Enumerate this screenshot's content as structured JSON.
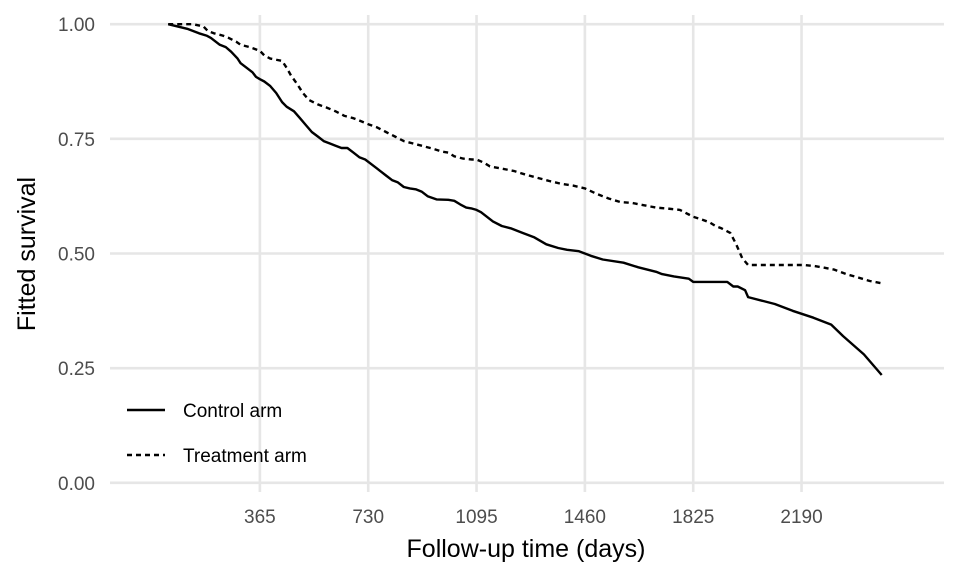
{
  "chart_data": {
    "type": "line",
    "title": "",
    "xlabel": "Follow-up time (days)",
    "ylabel": "Fitted survival",
    "xlim": [
      -140,
      2670
    ],
    "ylim": [
      -0.02,
      1.02
    ],
    "x_ticks": [
      365,
      730,
      1095,
      1460,
      1825,
      2190
    ],
    "x_tick_labels": [
      "365",
      "730",
      "1095",
      "1460",
      "1825",
      "2190"
    ],
    "y_ticks": [
      0.0,
      0.25,
      0.5,
      0.75,
      1.0
    ],
    "y_tick_labels": [
      "0.00",
      "0.25",
      "0.50",
      "0.75",
      "1.00"
    ],
    "grid": true,
    "legend_position": "bottom-left",
    "series": [
      {
        "name": "Control arm",
        "line_style": "solid",
        "color": "#000000",
        "x": [
          56,
          120,
          160,
          185,
          200,
          230,
          250,
          268,
          290,
          300,
          320,
          340,
          352,
          365,
          380,
          400,
          420,
          440,
          455,
          480,
          500,
          520,
          540,
          560,
          580,
          600,
          620,
          640,
          660,
          680,
          700,
          720,
          740,
          760,
          770,
          790,
          810,
          830,
          850,
          870,
          890,
          910,
          930,
          960,
          1000,
          1020,
          1040,
          1060,
          1080,
          1095,
          1110,
          1150,
          1180,
          1210,
          1250,
          1290,
          1330,
          1370,
          1400,
          1440,
          1480,
          1520,
          1590,
          1640,
          1700,
          1720,
          1760,
          1810,
          1825,
          1840,
          1880,
          1900,
          1940,
          1960,
          1975,
          2000,
          2010,
          2100,
          2160,
          2230,
          2290,
          2330,
          2400,
          2460
        ],
        "y": [
          1.0,
          0.99,
          0.98,
          0.975,
          0.97,
          0.955,
          0.95,
          0.94,
          0.925,
          0.915,
          0.905,
          0.895,
          0.885,
          0.88,
          0.875,
          0.865,
          0.85,
          0.83,
          0.82,
          0.81,
          0.795,
          0.78,
          0.765,
          0.755,
          0.745,
          0.74,
          0.735,
          0.73,
          0.73,
          0.72,
          0.71,
          0.705,
          0.695,
          0.685,
          0.68,
          0.67,
          0.66,
          0.655,
          0.645,
          0.642,
          0.64,
          0.635,
          0.625,
          0.618,
          0.617,
          0.615,
          0.607,
          0.6,
          0.598,
          0.595,
          0.59,
          0.57,
          0.56,
          0.555,
          0.545,
          0.535,
          0.52,
          0.512,
          0.508,
          0.505,
          0.495,
          0.487,
          0.48,
          0.47,
          0.46,
          0.455,
          0.45,
          0.445,
          0.438,
          0.438,
          0.438,
          0.438,
          0.438,
          0.428,
          0.428,
          0.42,
          0.405,
          0.39,
          0.375,
          0.36,
          0.345,
          0.32,
          0.28,
          0.235
        ]
      },
      {
        "name": "Treatment arm",
        "line_style": "dashed",
        "color": "#000000",
        "x": [
          56,
          140,
          175,
          190,
          210,
          240,
          260,
          285,
          300,
          330,
          365,
          380,
          400,
          440,
          455,
          470,
          490,
          510,
          530,
          560,
          590,
          620,
          650,
          680,
          700,
          730,
          760,
          790,
          820,
          850,
          880,
          910,
          950,
          980,
          1000,
          1020,
          1050,
          1080,
          1095,
          1120,
          1140,
          1180,
          1220,
          1260,
          1300,
          1340,
          1380,
          1420,
          1460,
          1500,
          1540,
          1580,
          1620,
          1660,
          1700,
          1740,
          1780,
          1810,
          1825,
          1850,
          1880,
          1900,
          1920,
          1950,
          1970,
          1990,
          2010,
          2060,
          2120,
          2170,
          2200,
          2230,
          2260,
          2300,
          2340,
          2380,
          2420,
          2460
        ],
        "y": [
          1.0,
          1.0,
          0.995,
          0.985,
          0.98,
          0.975,
          0.97,
          0.962,
          0.955,
          0.95,
          0.942,
          0.932,
          0.925,
          0.92,
          0.905,
          0.888,
          0.87,
          0.85,
          0.835,
          0.825,
          0.818,
          0.81,
          0.8,
          0.795,
          0.79,
          0.782,
          0.775,
          0.765,
          0.755,
          0.745,
          0.74,
          0.735,
          0.728,
          0.722,
          0.72,
          0.712,
          0.707,
          0.705,
          0.705,
          0.698,
          0.69,
          0.685,
          0.68,
          0.672,
          0.665,
          0.658,
          0.652,
          0.648,
          0.642,
          0.63,
          0.62,
          0.612,
          0.61,
          0.605,
          0.6,
          0.598,
          0.595,
          0.585,
          0.58,
          0.575,
          0.568,
          0.56,
          0.555,
          0.545,
          0.52,
          0.49,
          0.475,
          0.475,
          0.475,
          0.475,
          0.475,
          0.473,
          0.47,
          0.465,
          0.455,
          0.448,
          0.44,
          0.435
        ]
      }
    ]
  }
}
